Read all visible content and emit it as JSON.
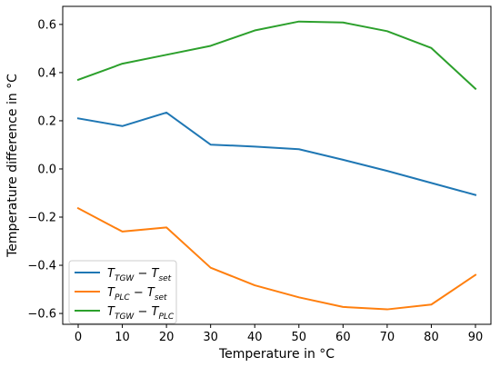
{
  "chart_data": {
    "type": "line",
    "title": "",
    "xlabel": "Temperature in °C",
    "ylabel": "Temperature difference in °C",
    "xlim": [
      -3.5,
      93.5
    ],
    "ylim": [
      -0.645,
      0.675
    ],
    "x_ticks": [
      0,
      10,
      20,
      30,
      40,
      50,
      60,
      70,
      80,
      90
    ],
    "x_tick_labels": [
      "0",
      "10",
      "20",
      "30",
      "40",
      "50",
      "60",
      "70",
      "80",
      "90"
    ],
    "y_ticks": [
      -0.6,
      -0.4,
      -0.2,
      0.0,
      0.2,
      0.4,
      0.6
    ],
    "y_tick_labels": [
      "−0.6",
      "−0.4",
      "−0.2",
      "0.0",
      "0.2",
      "0.4",
      "0.6"
    ],
    "grid": false,
    "legend_position": "lower-left",
    "x": [
      0,
      10,
      20,
      30,
      40,
      50,
      60,
      70,
      80,
      90
    ],
    "series": [
      {
        "name": "T_TGW − T_set",
        "legend": {
          "a": "T",
          "a_sub": "TGW",
          "op": " − ",
          "b": "T",
          "b_sub": "set"
        },
        "color": "#1f77b4",
        "values": [
          0.21,
          0.178,
          0.234,
          0.101,
          0.093,
          0.082,
          0.038,
          -0.008,
          -0.058,
          -0.108
        ]
      },
      {
        "name": "T_PLC − T_set",
        "legend": {
          "a": "T",
          "a_sub": "PLC",
          "op": " − ",
          "b": "T",
          "b_sub": "set"
        },
        "color": "#ff7f0e",
        "values": [
          -0.163,
          -0.26,
          -0.243,
          -0.41,
          -0.483,
          -0.533,
          -0.573,
          -0.583,
          -0.563,
          -0.44
        ]
      },
      {
        "name": "T_TGW − T_PLC",
        "legend": {
          "a": "T",
          "a_sub": "TGW",
          "op": " − ",
          "b": "T",
          "b_sub": "PLC"
        },
        "color": "#2ca02c",
        "values": [
          0.37,
          0.437,
          0.474,
          0.511,
          0.575,
          0.612,
          0.608,
          0.572,
          0.502,
          0.333
        ]
      }
    ]
  }
}
